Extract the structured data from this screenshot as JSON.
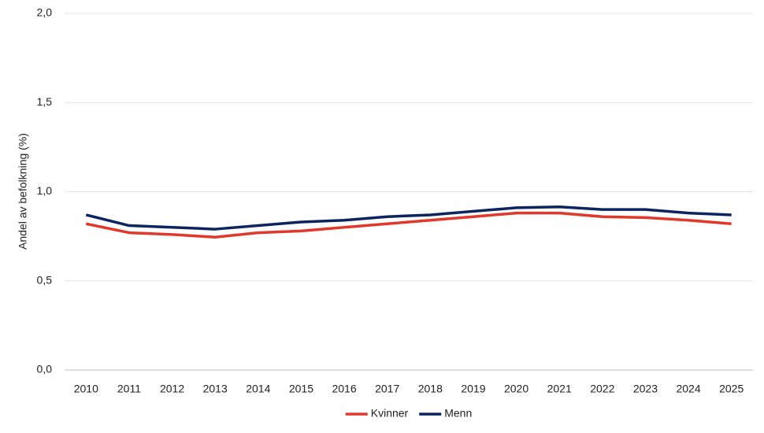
{
  "chart_data": {
    "type": "line",
    "y_label": "Andel av befolkning (%)",
    "categories": [
      "2010",
      "2011",
      "2012",
      "2013",
      "2014",
      "2015",
      "2016",
      "2017",
      "2018",
      "2019",
      "2020",
      "2021",
      "2022",
      "2023",
      "2024",
      "2025"
    ],
    "series": [
      {
        "name": "Kvinner",
        "color": "#e0392b",
        "values": [
          0.82,
          0.77,
          0.76,
          0.745,
          0.77,
          0.78,
          0.8,
          0.82,
          0.84,
          0.86,
          0.88,
          0.88,
          0.86,
          0.855,
          0.84,
          0.82
        ]
      },
      {
        "name": "Menn",
        "color": "#0d2460",
        "values": [
          0.87,
          0.81,
          0.8,
          0.79,
          0.81,
          0.83,
          0.84,
          0.86,
          0.87,
          0.89,
          0.91,
          0.915,
          0.9,
          0.9,
          0.88,
          0.87
        ]
      }
    ],
    "ylim": [
      0,
      2
    ],
    "yticks": [
      {
        "value": 0,
        "label": "0,0"
      },
      {
        "value": 0.5,
        "label": "0,5"
      },
      {
        "value": 1,
        "label": "1,0"
      },
      {
        "value": 1.5,
        "label": "1,5"
      },
      {
        "value": 2,
        "label": "2,0"
      }
    ],
    "grid": true,
    "legend": "bottom"
  }
}
